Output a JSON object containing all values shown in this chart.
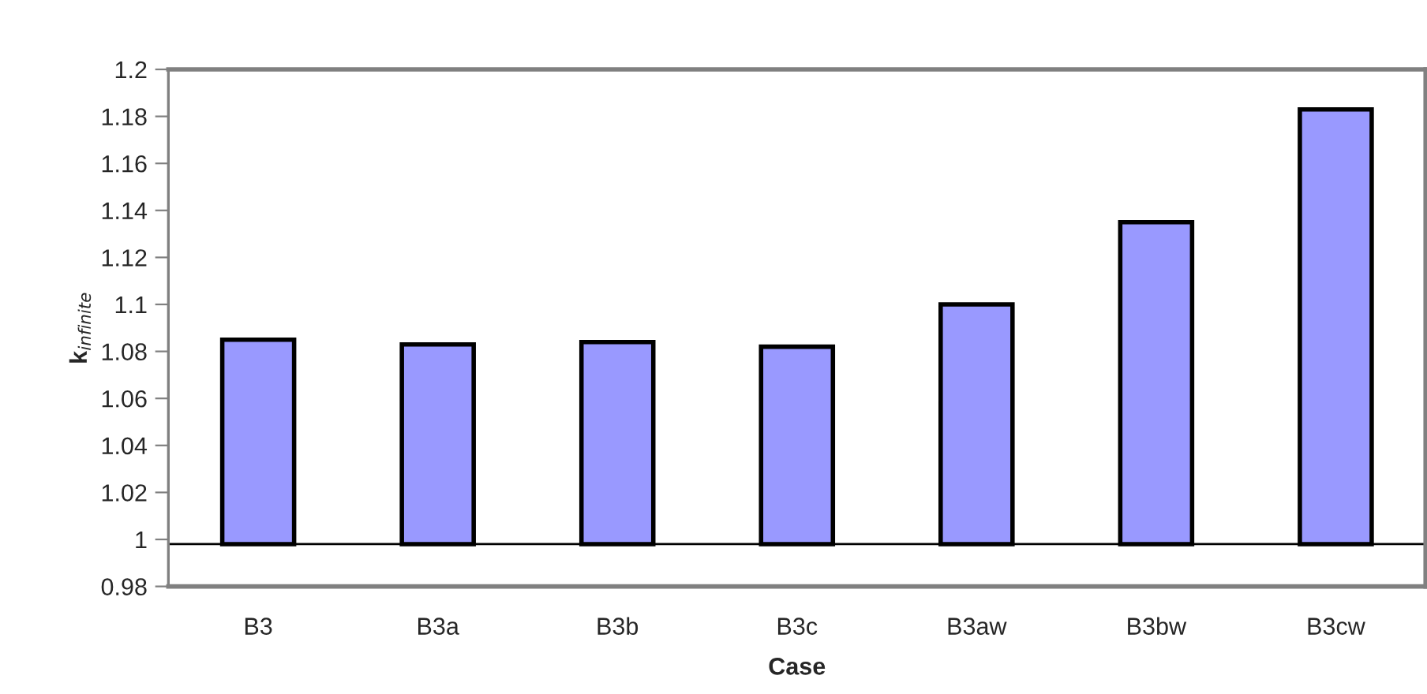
{
  "chart_data": {
    "type": "bar",
    "xlabel": "Case",
    "ylabel": "k$_{infinite}$",
    "categories": [
      "B3",
      "B3a",
      "B3b",
      "B3c",
      "B3aw",
      "B3bw",
      "B3cw"
    ],
    "base": [
      0.998,
      0.998,
      0.998,
      0.998,
      0.998,
      0.998,
      0.998
    ],
    "values": [
      0.087,
      0.085,
      0.086,
      0.084,
      0.102,
      0.137,
      0.185
    ],
    "color": "#9999ff",
    "ylim": [
      0.98,
      1.2
    ],
    "yticks": [
      0.98,
      1,
      1.02,
      1.04,
      1.06,
      1.08,
      1.1,
      1.12,
      1.14,
      1.16,
      1.18,
      1.2
    ],
    "ref_lines": [
      {
        "axis": "y",
        "value": 0.998,
        "color": "#000000"
      }
    ],
    "grid": false,
    "legend": false
  }
}
